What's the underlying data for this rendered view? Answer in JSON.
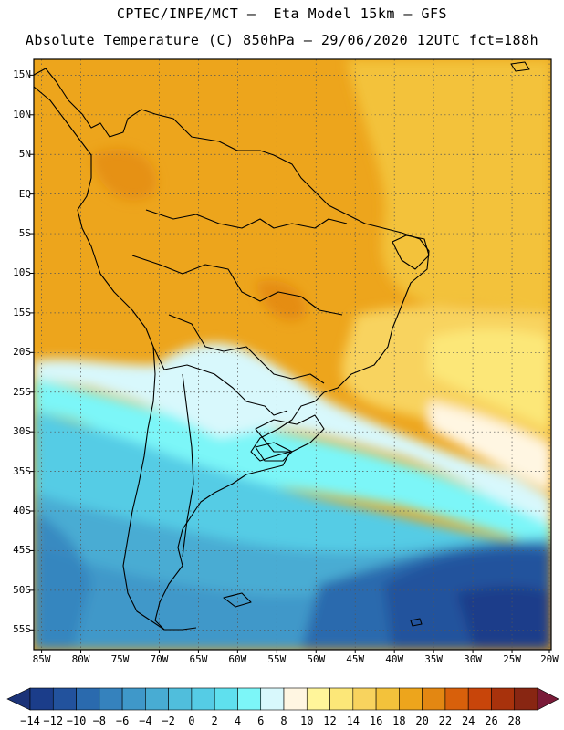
{
  "header": {
    "line1": "CPTEC/INPE/MCT –  Eta Model 15km – GFS",
    "line2": "Absolute Temperature (C) 850hPa – 29/06/2020 12UTC fct=188h"
  },
  "map": {
    "variable": "Absolute Temperature",
    "units": "C",
    "level": "850hPa",
    "lat_labels": [
      "15N",
      "10N",
      "5N",
      "EQ",
      "5S",
      "10S",
      "15S",
      "20S",
      "25S",
      "30S",
      "35S",
      "40S",
      "45S",
      "50S",
      "55S"
    ],
    "lon_labels": [
      "85W",
      "80W",
      "75W",
      "70W",
      "65W",
      "60W",
      "55W",
      "50W",
      "45W",
      "40W",
      "35W",
      "30W",
      "25W",
      "20W"
    ]
  },
  "colorbar": {
    "labels": [
      "-14",
      "-12",
      "-10",
      "-8",
      "-6",
      "-4",
      "-2",
      "0",
      "2",
      "4",
      "6",
      "8",
      "10",
      "12",
      "14",
      "16",
      "18",
      "20",
      "22",
      "24",
      "26",
      "28"
    ],
    "colors": [
      "#1b3d8a",
      "#22529d",
      "#2a6aae",
      "#3582bd",
      "#3f98c9",
      "#48acd3",
      "#50bedc",
      "#55cce5",
      "#5fe0ee",
      "#7cf6f8",
      "#d8f8fc",
      "#fff6e2",
      "#fff59a",
      "#fce778",
      "#f8d35e",
      "#f3c23b",
      "#eda51c",
      "#e38712",
      "#d8600b",
      "#c8450a",
      "#a8320c",
      "#882612"
    ],
    "under_color": "#1c3378",
    "over_color": "#7a1a38"
  }
}
